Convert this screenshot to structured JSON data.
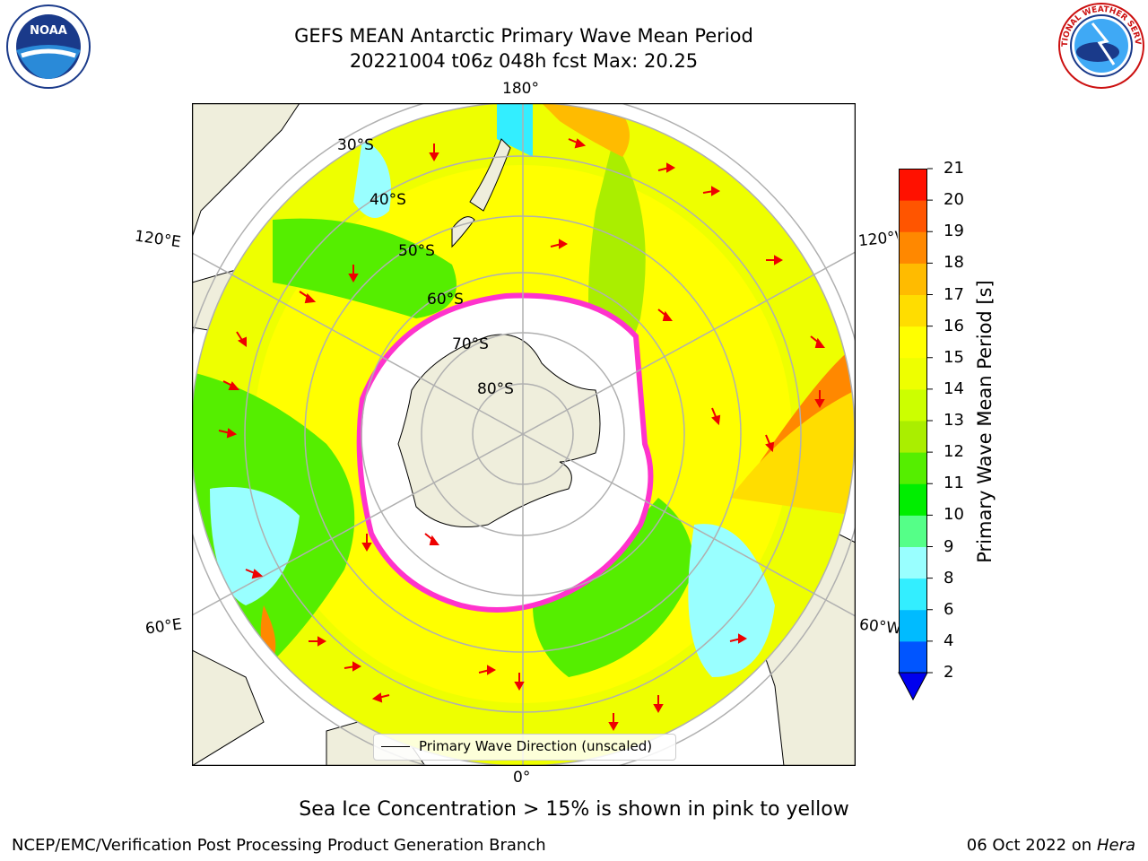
{
  "header": {
    "title_line1": "GEFS MEAN Antarctic Primary Wave Mean Period",
    "title_line2": "20221004 t06z 048h fcst   Max: 20.25"
  },
  "logos": {
    "left": "NOAA",
    "right": "NATIONAL WEATHER SERVICE"
  },
  "map": {
    "lon_labels": {
      "top": "180°",
      "bottom": "0°",
      "upper_left": "120°E",
      "upper_right": "120°W",
      "lower_left": "60°E",
      "lower_right": "60°W"
    },
    "lat_labels": [
      "30°S",
      "40°S",
      "50°S",
      "60°S",
      "70°S",
      "80°S"
    ],
    "legend_label": "Primary Wave Direction (unscaled)"
  },
  "colorbar": {
    "title": "Primary Wave Mean Period [s]",
    "ticks": [
      "2",
      "4",
      "6",
      "8",
      "9",
      "10",
      "11",
      "12",
      "13",
      "14",
      "15",
      "16",
      "17",
      "18",
      "19",
      "20",
      "21"
    ],
    "colors": [
      "#0055ff",
      "#00bbff",
      "#33eeff",
      "#99ffff",
      "#55ff88",
      "#00ee00",
      "#55ee00",
      "#aaee00",
      "#ccff00",
      "#eeff00",
      "#ffff00",
      "#ffdd00",
      "#ffbb00",
      "#ff8800",
      "#ff5500",
      "#ff1100"
    ],
    "under_color": "#0000ee"
  },
  "caption": "Sea Ice Concentration > 15% is shown in pink to yellow",
  "footer": {
    "left": "NCEP/EMC/Verification Post Processing Product Generation Branch",
    "right_date": "06 Oct 2022 on ",
    "right_host": "Hera"
  }
}
